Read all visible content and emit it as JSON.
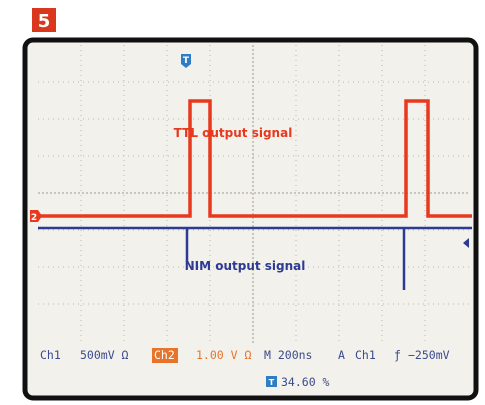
{
  "badge": "5",
  "trigger_marker": "T",
  "channel_marker": "2",
  "labels": {
    "ttl": "TTL output signal",
    "nim": "NIM output signal"
  },
  "status": {
    "ch1": "Ch1",
    "ch1_scale": "500mV Ω",
    "ch2": "Ch2",
    "ch2_scale": "1.00 V Ω",
    "timebase": "M 200ns",
    "trigger_mode": "A",
    "trigger_source": "Ch1",
    "trigger_slope": "ƒ",
    "trigger_level": "−250mV",
    "position_marker": "T",
    "position": "34.60 %"
  }
}
